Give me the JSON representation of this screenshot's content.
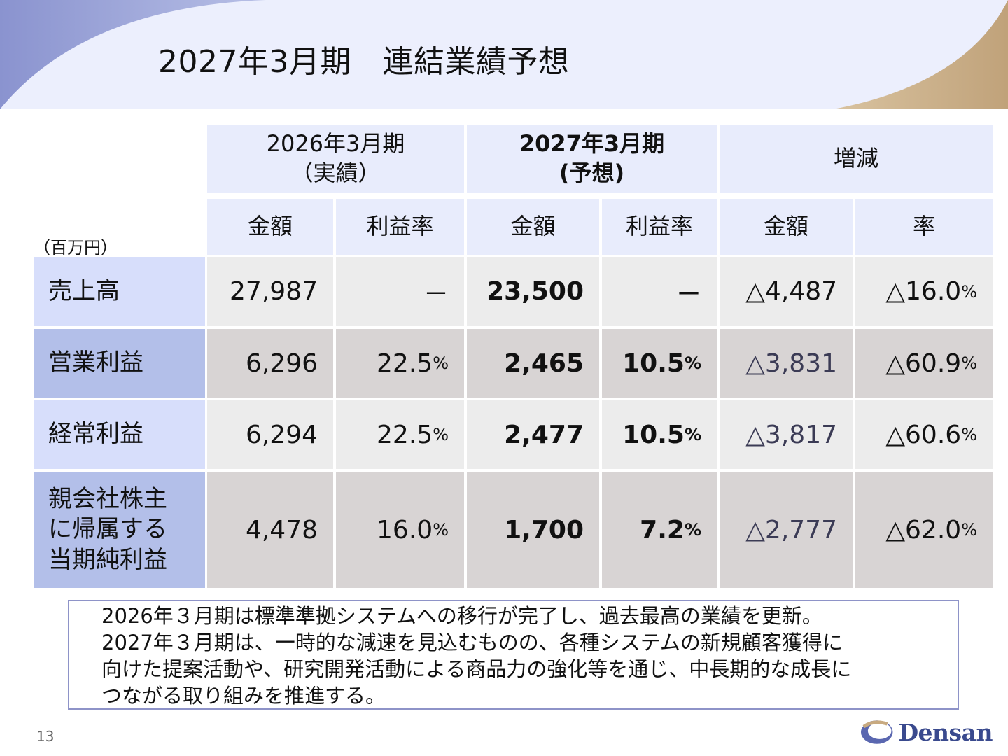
{
  "header": {
    "title": "2027年3月期　連結業績予想"
  },
  "table": {
    "unit_label": "（百万円）",
    "groups": [
      {
        "line1": "2026年3月期",
        "line2": "（実績）"
      },
      {
        "line1": "2027年3月期",
        "line2": "(予想)"
      },
      {
        "line1": "増減",
        "line2": ""
      }
    ],
    "subheaders": [
      "金額",
      "利益率",
      "金額",
      "利益率",
      "金額",
      "率"
    ],
    "rows": [
      {
        "label": "売上高",
        "cells": [
          {
            "v": "27,987",
            "u": ""
          },
          {
            "v": "－",
            "u": ""
          },
          {
            "v": "23,500",
            "u": ""
          },
          {
            "v": "－",
            "u": ""
          },
          {
            "v": "△4,487",
            "u": ""
          },
          {
            "v": "△16.0",
            "u": "%"
          }
        ]
      },
      {
        "label": "営業利益",
        "cells": [
          {
            "v": "6,296",
            "u": ""
          },
          {
            "v": "22.5",
            "u": "%"
          },
          {
            "v": "2,465",
            "u": ""
          },
          {
            "v": "10.5",
            "u": "%"
          },
          {
            "v": "△3,831",
            "u": ""
          },
          {
            "v": "△60.9",
            "u": "%"
          }
        ]
      },
      {
        "label": "経常利益",
        "cells": [
          {
            "v": "6,294",
            "u": ""
          },
          {
            "v": "22.5",
            "u": "%"
          },
          {
            "v": "2,477",
            "u": ""
          },
          {
            "v": "10.5",
            "u": "%"
          },
          {
            "v": "△3,817",
            "u": ""
          },
          {
            "v": "△60.6",
            "u": "%"
          }
        ]
      },
      {
        "label_lines": [
          "親会社株主",
          "に帰属する",
          "当期純利益"
        ],
        "cells": [
          {
            "v": "4,478",
            "u": ""
          },
          {
            "v": "16.0",
            "u": "%"
          },
          {
            "v": "1,700",
            "u": ""
          },
          {
            "v": "7.2",
            "u": "%"
          },
          {
            "v": "△2,777",
            "u": ""
          },
          {
            "v": "△62.0",
            "u": "%"
          }
        ]
      }
    ]
  },
  "note": {
    "lines": [
      "2026年３月期は標準準拠システムへの移行が完了し、過去最高の業績を更新。",
      "2027年３月期は、一時的な減速を見込むものの、各種システムの新規顧客獲得に",
      "向けた提案活動や、研究開発活動による商品力の強化等を通じ、中長期的な成長に",
      "つながる取り組みを推進する。"
    ]
  },
  "footer": {
    "page_number": "13",
    "logo_text": "Densan"
  },
  "colors": {
    "header_band": "#eceffd",
    "row_label": "#d7defb",
    "row_label_dark": "#b3bfe9",
    "accent_gold": "#c8aa80",
    "accent_blue": "#8a93cf"
  }
}
